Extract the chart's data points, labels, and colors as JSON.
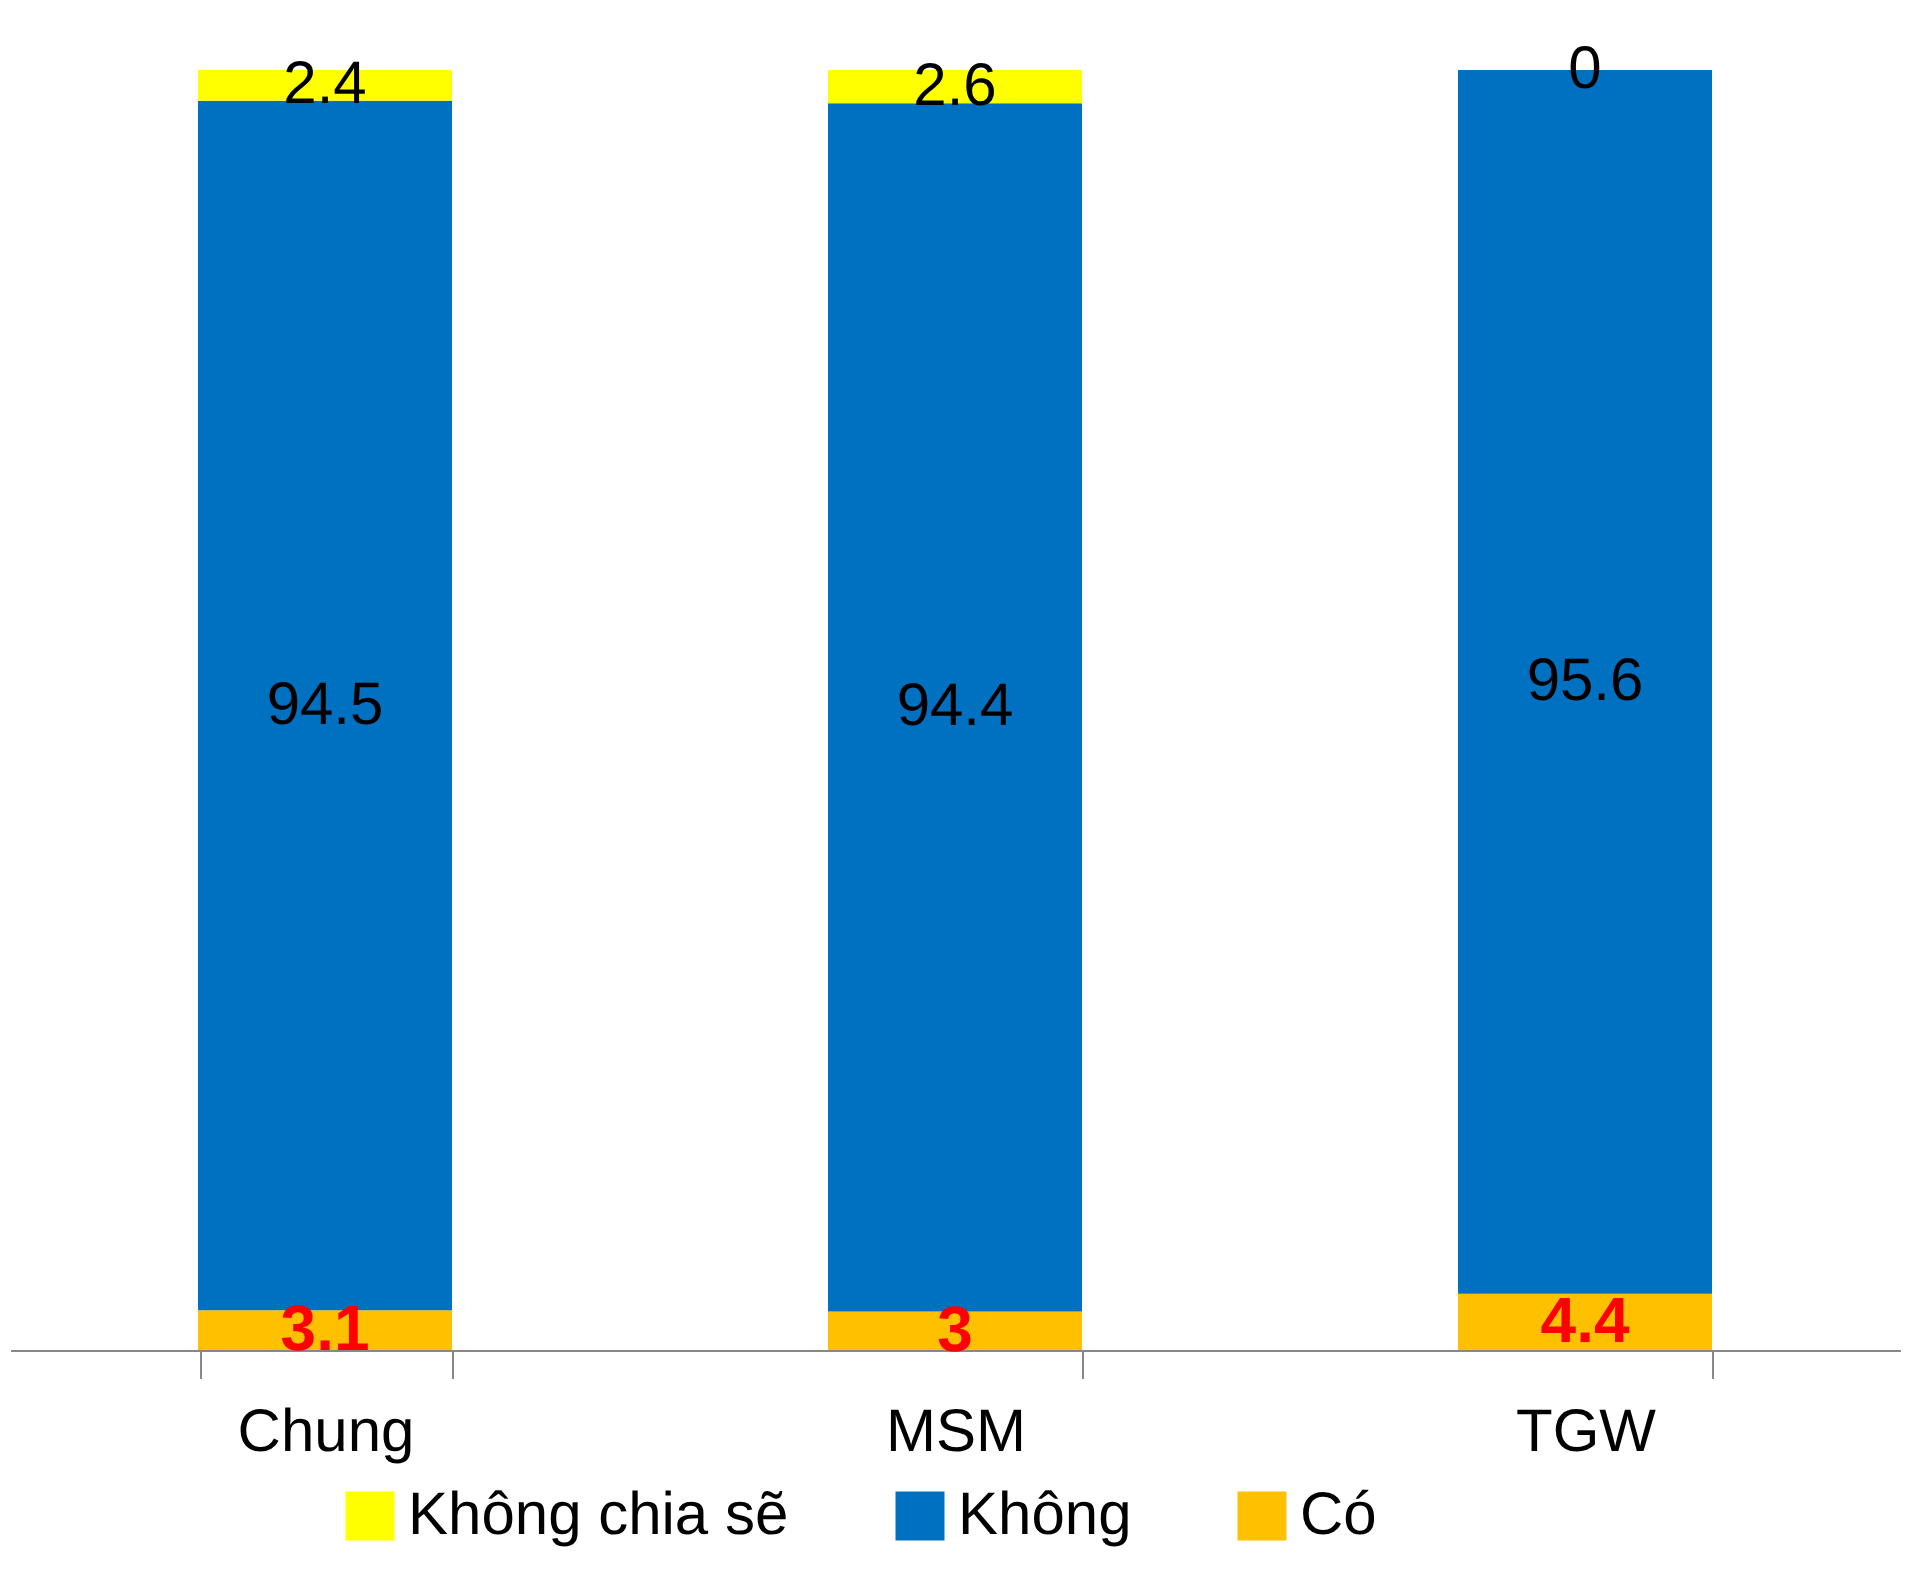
{
  "chart_data": {
    "type": "bar",
    "stacked": true,
    "categories": [
      "Chung",
      "MSM",
      "TGW"
    ],
    "series": [
      {
        "name": "Có",
        "color": "#ffc000",
        "values": [
          3.1,
          3,
          4.4
        ]
      },
      {
        "name": "Không",
        "color": "#0070c0",
        "values": [
          94.5,
          94.4,
          95.6
        ]
      },
      {
        "name": "Không chia sẽ",
        "color": "#ffff00",
        "values": [
          2.4,
          2.6,
          0
        ]
      }
    ],
    "ylim": [
      0,
      100
    ],
    "tick_labels": "x",
    "data_labels": true,
    "legend": "bottom"
  }
}
